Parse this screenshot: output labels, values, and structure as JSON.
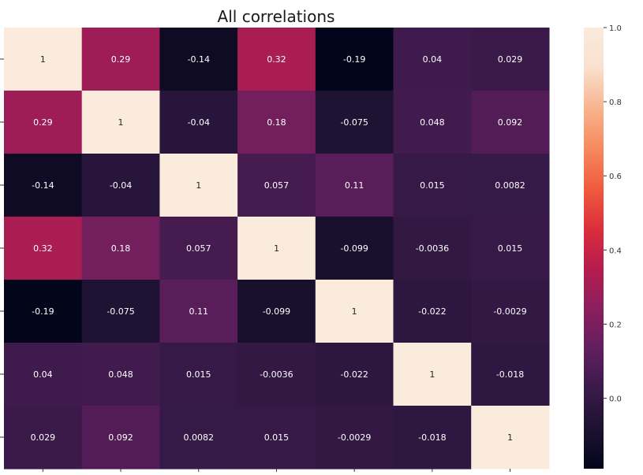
{
  "chart_data": {
    "type": "heatmap",
    "title": "All correlations",
    "row_labels": [
      "",
      "",
      "",
      "",
      "",
      "",
      ""
    ],
    "col_labels": [
      "",
      "",
      "",
      "",
      "",
      "",
      ""
    ],
    "values": [
      [
        1,
        0.29,
        -0.14,
        0.32,
        -0.19,
        0.04,
        0.029
      ],
      [
        0.29,
        1,
        -0.04,
        0.18,
        -0.075,
        0.048,
        0.092
      ],
      [
        -0.14,
        -0.04,
        1,
        0.057,
        0.11,
        0.015,
        0.0082
      ],
      [
        0.32,
        0.18,
        0.057,
        1,
        -0.099,
        -0.0036,
        0.015
      ],
      [
        -0.19,
        -0.075,
        0.11,
        -0.099,
        1,
        -0.022,
        -0.0029
      ],
      [
        0.04,
        0.048,
        0.015,
        -0.0036,
        -0.022,
        1,
        -0.018
      ],
      [
        0.029,
        0.092,
        0.0082,
        0.015,
        -0.0029,
        -0.018,
        1
      ]
    ],
    "annotations": [
      [
        "1",
        "0.29",
        "-0.14",
        "0.32",
        "-0.19",
        "0.04",
        "0.029"
      ],
      [
        "0.29",
        "1",
        "-0.04",
        "0.18",
        "-0.075",
        "0.048",
        "0.092"
      ],
      [
        "-0.14",
        "-0.04",
        "1",
        "0.057",
        "0.11",
        "0.015",
        "0.0082"
      ],
      [
        "0.32",
        "0.18",
        "0.057",
        "1",
        "-0.099",
        "-0.0036",
        "0.015"
      ],
      [
        "-0.19",
        "-0.075",
        "0.11",
        "-0.099",
        "1",
        "-0.022",
        "-0.0029"
      ],
      [
        "0.04",
        "0.048",
        "0.015",
        "-0.0036",
        "-0.022",
        "1",
        "-0.018"
      ],
      [
        "0.029",
        "0.092",
        "0.0082",
        "0.015",
        "-0.0029",
        "-0.018",
        "1"
      ]
    ],
    "colorbar": {
      "vmin": -0.19,
      "vmax": 1,
      "ticks": [
        0.0,
        0.2,
        0.4,
        0.6,
        0.8,
        1.0
      ],
      "tick_labels": [
        "0.0",
        "0.2",
        "0.4",
        "0.6",
        "0.8",
        "1.0"
      ]
    },
    "colormap": "rocket",
    "colormap_stops": [
      "#03051a",
      "#1d1231",
      "#3a1a4a",
      "#621f5e",
      "#8b1e5e",
      "#b61c4e",
      "#dc2e3c",
      "#f05c3e",
      "#f68a5e",
      "#f8b48f",
      "#fae0ce",
      "#faebdd"
    ],
    "annotation_colors": {
      "dark_cell_text": "#ffffff",
      "light_cell_text": "#262626"
    }
  }
}
